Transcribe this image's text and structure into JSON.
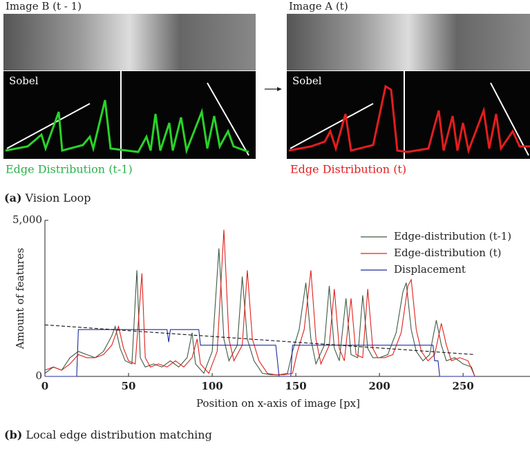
{
  "panel_a": {
    "left_title": "Image B (t - 1)",
    "right_title": "Image A (t)",
    "left_sobel": "Sobel",
    "right_sobel": "Sobel",
    "left_caption": "Edge Distribution (t-1)",
    "right_caption": "Edge Distribution (t)",
    "label": "(a)",
    "caption": "Vision Loop"
  },
  "panel_b": {
    "label": "(b)",
    "caption": "Local edge distribution matching"
  },
  "chart_data": {
    "type": "line",
    "xlabel": "Position on x-axis of image [px]",
    "ylabel": "Amount of features",
    "xlim": [
      0,
      290
    ],
    "ylim": [
      0,
      5000
    ],
    "xticks": [
      0,
      50,
      100,
      150,
      200,
      250
    ],
    "yticks": [
      0,
      {
        "value": 5000,
        "label": "5,000"
      }
    ],
    "legend": "upper right",
    "series": [
      {
        "name": "Edge-distribution (t-1)",
        "color": "#3d5a45",
        "x": [
          0,
          5,
          10,
          15,
          20,
          25,
          30,
          35,
          40,
          42,
          45,
          48,
          52,
          55,
          57,
          60,
          65,
          70,
          75,
          80,
          85,
          88,
          90,
          95,
          100,
          104,
          107,
          110,
          115,
          118,
          121,
          125,
          130,
          135,
          140,
          145,
          148,
          152,
          156,
          159,
          162,
          167,
          170,
          173,
          176,
          180,
          183,
          187,
          190,
          193,
          196,
          200,
          205,
          210,
          214,
          216,
          219,
          222,
          226,
          230,
          234,
          237,
          240,
          245,
          250,
          255,
          257
        ],
        "values": [
          100,
          300,
          200,
          600,
          800,
          700,
          600,
          800,
          1300,
          1600,
          900,
          500,
          400,
          3400,
          600,
          300,
          400,
          300,
          500,
          300,
          600,
          1400,
          400,
          100,
          800,
          4100,
          1200,
          500,
          1000,
          3200,
          1200,
          500,
          100,
          50,
          50,
          100,
          800,
          1500,
          3000,
          1200,
          400,
          1000,
          2900,
          900,
          500,
          2500,
          700,
          600,
          2600,
          900,
          600,
          600,
          700,
          1400,
          2700,
          3000,
          1500,
          800,
          500,
          700,
          1800,
          1000,
          500,
          600,
          400,
          300,
          0
        ]
      },
      {
        "name": "Edge-distribution (t)",
        "color": "#e0201b",
        "x": [
          0,
          5,
          10,
          15,
          20,
          25,
          30,
          35,
          40,
          44,
          47,
          50,
          54,
          58,
          60,
          63,
          68,
          73,
          78,
          83,
          88,
          91,
          93,
          98,
          103,
          107,
          110,
          113,
          118,
          121,
          124,
          128,
          133,
          138,
          143,
          148,
          151,
          155,
          159,
          162,
          165,
          170,
          173,
          176,
          179,
          183,
          186,
          190,
          193,
          196,
          199,
          203,
          208,
          213,
          217,
          219,
          222,
          225,
          229,
          233,
          237,
          240,
          243,
          248,
          253,
          257
        ],
        "values": [
          200,
          300,
          200,
          400,
          700,
          600,
          600,
          700,
          1000,
          1600,
          900,
          500,
          400,
          3300,
          600,
          300,
          400,
          300,
          500,
          300,
          600,
          1200,
          400,
          100,
          800,
          4700,
          1200,
          500,
          1000,
          3400,
          1200,
          500,
          100,
          50,
          50,
          100,
          800,
          1500,
          3400,
          1200,
          400,
          1000,
          2800,
          900,
          500,
          2500,
          700,
          600,
          2800,
          900,
          600,
          600,
          700,
          1400,
          2900,
          3100,
          1500,
          800,
          500,
          700,
          1700,
          1000,
          500,
          600,
          500,
          0
        ]
      },
      {
        "name": "Displacement",
        "color": "#1c2a9c",
        "x": [
          0,
          19,
          20,
          73,
          74,
          75,
          92,
          93,
          95,
          130,
          131,
          136,
          137,
          138,
          140,
          147,
          148,
          152,
          153,
          232,
          233,
          235,
          236,
          257
        ],
        "values": [
          0,
          0,
          1500,
          1500,
          1100,
          1500,
          1500,
          1000,
          1000,
          1000,
          1000,
          1000,
          1000,
          1000,
          0,
          0,
          1000,
          1000,
          1000,
          1000,
          500,
          500,
          0,
          0
        ]
      },
      {
        "color": "#111111",
        "dash": true,
        "x": [
          0,
          257
        ],
        "values": [
          1650,
          700
        ]
      }
    ]
  }
}
